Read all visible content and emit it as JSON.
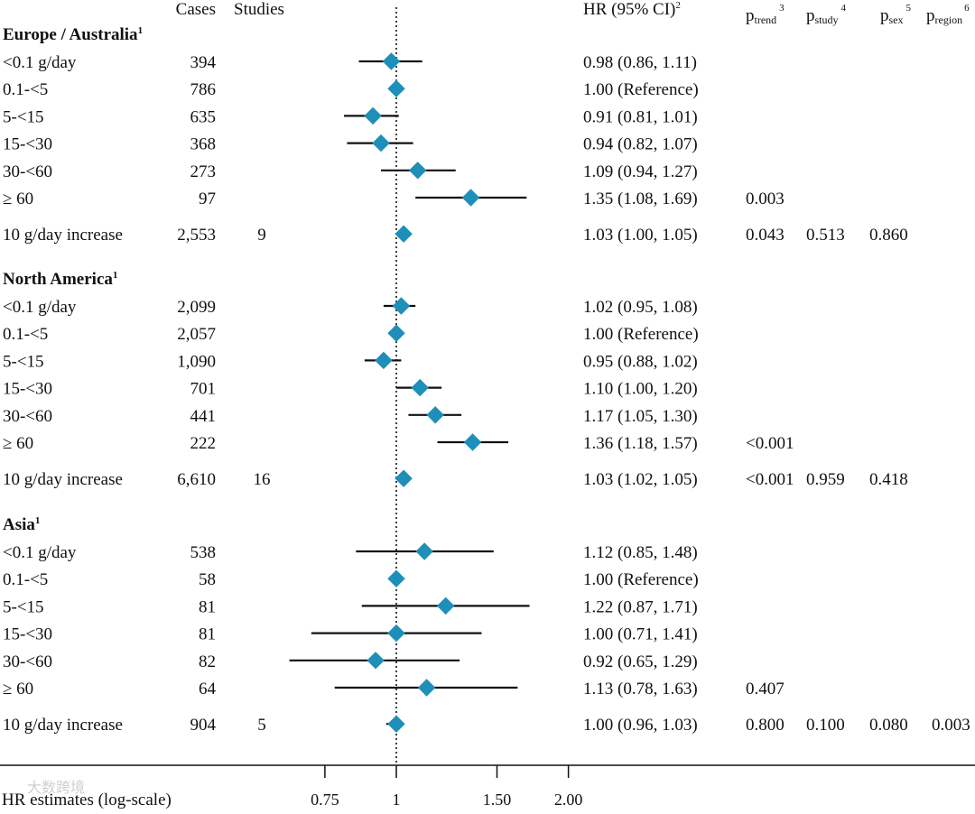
{
  "headers": {
    "cases": "Cases",
    "studies": "Studies",
    "hr": "HR (95% CI)",
    "hr_sup": "2",
    "p_trend": {
      "base": "p",
      "sub": "trend",
      "sup": "3"
    },
    "p_study": {
      "base": "p",
      "sub": "study",
      "sup": "4"
    },
    "p_sex": {
      "base": "p",
      "sub": "sex",
      "sup": "5"
    },
    "p_region": {
      "base": "p",
      "sub": "region",
      "sup": "6"
    }
  },
  "axis": {
    "title": "HR estimates (log-scale)",
    "ticks": [
      {
        "value": 0.75,
        "label": "0.75"
      },
      {
        "value": 1.0,
        "label": "1"
      },
      {
        "value": 1.5,
        "label": "1.50"
      },
      {
        "value": 2.0,
        "label": "2.00"
      }
    ]
  },
  "watermark": "大数跨境",
  "marker_color": "#1e8fb8",
  "chart_data": {
    "type": "forest",
    "title": "",
    "xlabel": "HR estimates (log-scale)",
    "scale": "log",
    "reference_line": 1.0,
    "groups": [
      {
        "name": "Europe / Australia",
        "sup": "1",
        "rows": [
          {
            "label": "<0.1 g/day",
            "cases": "394",
            "studies": "",
            "hr": 0.98,
            "lo": 0.86,
            "hi": 1.11,
            "ci_text": "0.98 (0.86, 1.11)",
            "p_trend": "",
            "p_study": "",
            "p_sex": "",
            "p_region": ""
          },
          {
            "label": "0.1-<5",
            "cases": "786",
            "studies": "",
            "hr": 1.0,
            "lo": 1.0,
            "hi": 1.0,
            "ci_text": "1.00 (Reference)",
            "p_trend": "",
            "p_study": "",
            "p_sex": "",
            "p_region": ""
          },
          {
            "label": "5-<15",
            "cases": "635",
            "studies": "",
            "hr": 0.91,
            "lo": 0.81,
            "hi": 1.01,
            "ci_text": "0.91 (0.81, 1.01)",
            "p_trend": "",
            "p_study": "",
            "p_sex": "",
            "p_region": ""
          },
          {
            "label": "15-<30",
            "cases": "368",
            "studies": "",
            "hr": 0.94,
            "lo": 0.82,
            "hi": 1.07,
            "ci_text": "0.94 (0.82, 1.07)",
            "p_trend": "",
            "p_study": "",
            "p_sex": "",
            "p_region": ""
          },
          {
            "label": "30-<60",
            "cases": "273",
            "studies": "",
            "hr": 1.09,
            "lo": 0.94,
            "hi": 1.27,
            "ci_text": "1.09 (0.94, 1.27)",
            "p_trend": "",
            "p_study": "",
            "p_sex": "",
            "p_region": ""
          },
          {
            "label": "≥ 60",
            "cases": "97",
            "studies": "",
            "hr": 1.35,
            "lo": 1.08,
            "hi": 1.69,
            "ci_text": "1.35 (1.08, 1.69)",
            "p_trend": "0.003",
            "p_study": "",
            "p_sex": "",
            "p_region": ""
          },
          {
            "label": "10 g/day increase",
            "cases": "2,553",
            "studies": "9",
            "hr": 1.03,
            "lo": 1.0,
            "hi": 1.05,
            "ci_text": "1.03 (1.00, 1.05)",
            "p_trend": "0.043",
            "p_study": "0.513",
            "p_sex": "0.860",
            "p_region": "",
            "summary": true
          }
        ]
      },
      {
        "name": "North America",
        "sup": "1",
        "rows": [
          {
            "label": "<0.1 g/day",
            "cases": "2,099",
            "studies": "",
            "hr": 1.02,
            "lo": 0.95,
            "hi": 1.08,
            "ci_text": "1.02 (0.95, 1.08)",
            "p_trend": "",
            "p_study": "",
            "p_sex": "",
            "p_region": ""
          },
          {
            "label": "0.1-<5",
            "cases": "2,057",
            "studies": "",
            "hr": 1.0,
            "lo": 1.0,
            "hi": 1.0,
            "ci_text": "1.00 (Reference)",
            "p_trend": "",
            "p_study": "",
            "p_sex": "",
            "p_region": ""
          },
          {
            "label": "5-<15",
            "cases": "1,090",
            "studies": "",
            "hr": 0.95,
            "lo": 0.88,
            "hi": 1.02,
            "ci_text": "0.95 (0.88, 1.02)",
            "p_trend": "",
            "p_study": "",
            "p_sex": "",
            "p_region": ""
          },
          {
            "label": "15-<30",
            "cases": "701",
            "studies": "",
            "hr": 1.1,
            "lo": 1.0,
            "hi": 1.2,
            "ci_text": "1.10 (1.00, 1.20)",
            "p_trend": "",
            "p_study": "",
            "p_sex": "",
            "p_region": ""
          },
          {
            "label": "30-<60",
            "cases": "441",
            "studies": "",
            "hr": 1.17,
            "lo": 1.05,
            "hi": 1.3,
            "ci_text": "1.17 (1.05, 1.30)",
            "p_trend": "",
            "p_study": "",
            "p_sex": "",
            "p_region": ""
          },
          {
            "label": "≥ 60",
            "cases": "222",
            "studies": "",
            "hr": 1.36,
            "lo": 1.18,
            "hi": 1.57,
            "ci_text": "1.36 (1.18, 1.57)",
            "p_trend": "<0.001",
            "p_study": "",
            "p_sex": "",
            "p_region": ""
          },
          {
            "label": "10 g/day increase",
            "cases": "6,610",
            "studies": "16",
            "hr": 1.03,
            "lo": 1.02,
            "hi": 1.05,
            "ci_text": "1.03 (1.02, 1.05)",
            "p_trend": "<0.001",
            "p_study": "0.959",
            "p_sex": "0.418",
            "p_region": "",
            "summary": true
          }
        ]
      },
      {
        "name": "Asia",
        "sup": "1",
        "rows": [
          {
            "label": "<0.1 g/day",
            "cases": "538",
            "studies": "",
            "hr": 1.12,
            "lo": 0.85,
            "hi": 1.48,
            "ci_text": "1.12 (0.85, 1.48)",
            "p_trend": "",
            "p_study": "",
            "p_sex": "",
            "p_region": ""
          },
          {
            "label": "0.1-<5",
            "cases": "58",
            "studies": "",
            "hr": 1.0,
            "lo": 1.0,
            "hi": 1.0,
            "ci_text": "1.00 (Reference)",
            "p_trend": "",
            "p_study": "",
            "p_sex": "",
            "p_region": ""
          },
          {
            "label": "5-<15",
            "cases": "81",
            "studies": "",
            "hr": 1.22,
            "lo": 0.87,
            "hi": 1.71,
            "ci_text": "1.22 (0.87, 1.71)",
            "p_trend": "",
            "p_study": "",
            "p_sex": "",
            "p_region": ""
          },
          {
            "label": "15-<30",
            "cases": "81",
            "studies": "",
            "hr": 1.0,
            "lo": 0.71,
            "hi": 1.41,
            "ci_text": "1.00 (0.71, 1.41)",
            "p_trend": "",
            "p_study": "",
            "p_sex": "",
            "p_region": ""
          },
          {
            "label": "30-<60",
            "cases": "82",
            "studies": "",
            "hr": 0.92,
            "lo": 0.65,
            "hi": 1.29,
            "ci_text": "0.92 (0.65, 1.29)",
            "p_trend": "",
            "p_study": "",
            "p_sex": "",
            "p_region": ""
          },
          {
            "label": "≥ 60",
            "cases": "64",
            "studies": "",
            "hr": 1.13,
            "lo": 0.78,
            "hi": 1.63,
            "ci_text": "1.13 (0.78, 1.63)",
            "p_trend": "0.407",
            "p_study": "",
            "p_sex": "",
            "p_region": ""
          },
          {
            "label": "10 g/day increase",
            "cases": "904",
            "studies": "5",
            "hr": 1.0,
            "lo": 0.96,
            "hi": 1.03,
            "ci_text": "1.00 (0.96, 1.03)",
            "p_trend": "0.800",
            "p_study": "0.100",
            "p_sex": "0.080",
            "p_region": "0.003",
            "summary": true
          }
        ]
      }
    ]
  }
}
